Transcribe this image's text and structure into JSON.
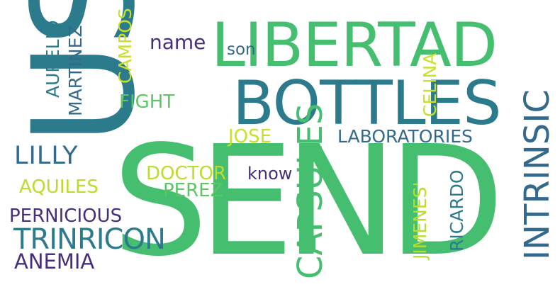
{
  "palette": {
    "background": "#ffffff",
    "teal_dark": "#2b7b8c",
    "teal": "#33698c",
    "green": "#45bf6f",
    "green_light": "#5dc663",
    "lime": "#b9dd2c",
    "yellow_green": "#c8e02a",
    "navy": "#3f4d8b",
    "purple": "#472e7c",
    "indigo": "#414487"
  },
  "words": {
    "us": "US",
    "send": "SEND",
    "libertad": "LIBERTAD",
    "bottles": "BOTTLES",
    "capsules": "CAPSULES",
    "intrinsic": "INTRINSIC",
    "trinricon": "TRINRICON",
    "lilly": "LILLY",
    "laboratories": "LABORATORIES",
    "pernicious": "PERNICIOUS",
    "anemia": "ANEMIA",
    "aquiles": "AQUILES",
    "doctor": "DOCTOR",
    "perez": "PEREZ",
    "jose": "JOSE",
    "fight": "FIGHT",
    "name": "name",
    "son": "son",
    "know": "know",
    "aurelio": "AURELIO",
    "martinez": "MARTINEZ",
    "campos": "CAMPOS",
    "celina": "CELINA",
    "jimenes": "JIMENES'",
    "ricardo": "RICARDO"
  }
}
